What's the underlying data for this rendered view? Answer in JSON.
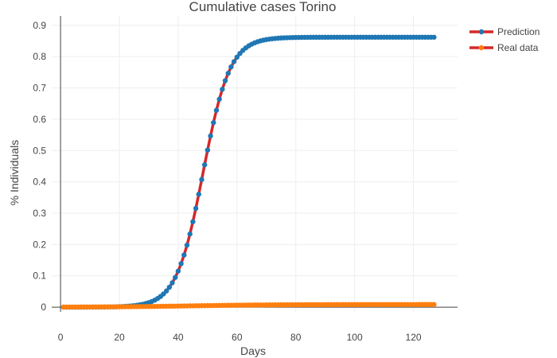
{
  "chart_data": {
    "type": "line",
    "title": "Cumulative cases Torino",
    "xlabel": "Days",
    "ylabel": "% Individuals",
    "xlim": [
      -3,
      135
    ],
    "ylim": [
      -0.015,
      0.93
    ],
    "x_ticks": [
      "0",
      "20",
      "40",
      "60",
      "80",
      "100",
      "120"
    ],
    "y_ticks": [
      "0",
      "0.1",
      "0.2",
      "0.3",
      "0.4",
      "0.5",
      "0.6",
      "0.7",
      "0.8",
      "0.9"
    ],
    "grid": true,
    "legend_position": "top-right",
    "x_range": [
      1,
      127
    ],
    "series": [
      {
        "name": "Prediction",
        "line_color": "#d62728",
        "marker_color": "#1f77b4",
        "model": "logistic",
        "plateau": 0.862,
        "growth_rate": 0.22,
        "midpoint_day": 48.5
      },
      {
        "name": "Real data",
        "line_color": "#d62728",
        "marker_color": "#ff7f0e",
        "model": "logistic",
        "plateau": 0.0085,
        "growth_rate": 0.07,
        "midpoint_day": 45
      }
    ]
  }
}
